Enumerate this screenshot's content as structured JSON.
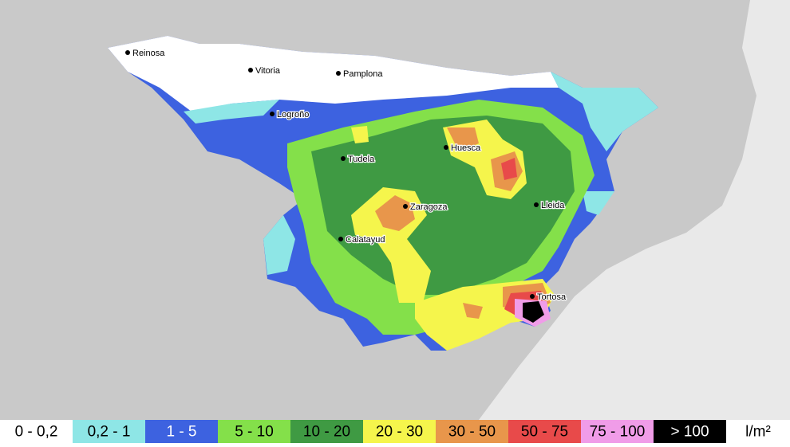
{
  "cities": [
    "Reinosa",
    "Vitoria",
    "Pamplona",
    "Logroño",
    "Tudela",
    "Huesca",
    "Zaragoza",
    "Lleida",
    "Calatayud",
    "Tortosa"
  ],
  "legend": {
    "items": [
      {
        "label": "0 - 0,2",
        "color": "#ffffff"
      },
      {
        "label": "0,2 - 1",
        "color": "#8ee6e6"
      },
      {
        "label": "1 - 5",
        "color": "#3d62e0"
      },
      {
        "label": "5 - 10",
        "color": "#84e04a"
      },
      {
        "label": "10 - 20",
        "color": "#3f9a43"
      },
      {
        "label": "20 - 30",
        "color": "#f5f54c"
      },
      {
        "label": "30 - 50",
        "color": "#e8964b"
      },
      {
        "label": "50 - 75",
        "color": "#e84a4a"
      },
      {
        "label": "75 - 100",
        "color": "#f09ce8"
      },
      {
        "label": "> 100",
        "color": "#000000"
      }
    ],
    "unit": "l/m²"
  }
}
